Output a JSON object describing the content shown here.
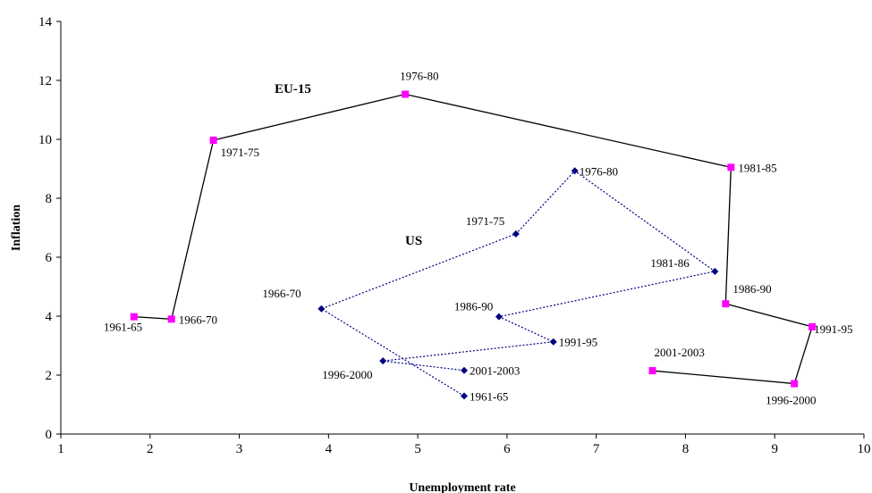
{
  "chart_data": {
    "type": "scatter",
    "xlabel": "Unemployment rate",
    "ylabel": "Inflation",
    "xlim": [
      1,
      10
    ],
    "ylim": [
      0,
      14
    ],
    "xticks": [
      1,
      2,
      3,
      4,
      5,
      6,
      7,
      8,
      9,
      10
    ],
    "yticks": [
      0,
      2,
      4,
      6,
      8,
      10,
      12,
      14
    ],
    "grid": false,
    "legend": "none",
    "series": [
      {
        "name": "EU-15",
        "color": "#ff00ff",
        "line_color": "#000000",
        "line_style": "solid",
        "marker": "square",
        "points": [
          {
            "label": "1961-65",
            "x": 1.82,
            "y": 3.98
          },
          {
            "label": "1966-70",
            "x": 2.24,
            "y": 3.9
          },
          {
            "label": "1971-75",
            "x": 2.71,
            "y": 9.97
          },
          {
            "label": "1976-80",
            "x": 4.86,
            "y": 11.53
          },
          {
            "label": "1981-85",
            "x": 8.51,
            "y": 9.05
          },
          {
            "label": "1986-90",
            "x": 8.45,
            "y": 4.42
          },
          {
            "label": "1991-95",
            "x": 9.42,
            "y": 3.64
          },
          {
            "label": "1996-2000",
            "x": 9.22,
            "y": 1.71
          },
          {
            "label": "2001-2003",
            "x": 7.63,
            "y": 2.15
          }
        ]
      },
      {
        "name": "US",
        "color": "#000080",
        "line_color": "#000080",
        "line_style": "dotted",
        "marker": "diamond",
        "points": [
          {
            "label": "1961-65",
            "x": 5.52,
            "y": 1.29
          },
          {
            "label": "1966-70",
            "x": 3.92,
            "y": 4.25
          },
          {
            "label": "1971-75",
            "x": 6.1,
            "y": 6.79
          },
          {
            "label": "1976-80",
            "x": 6.76,
            "y": 8.93
          },
          {
            "label": "1981-86",
            "x": 8.33,
            "y": 5.52
          },
          {
            "label": "1986-90",
            "x": 5.91,
            "y": 3.98
          },
          {
            "label": "1991-95",
            "x": 6.52,
            "y": 3.13
          },
          {
            "label": "1996-2000",
            "x": 4.61,
            "y": 2.48
          },
          {
            "label": "2001-2003",
            "x": 5.52,
            "y": 2.16
          }
        ]
      }
    ]
  }
}
